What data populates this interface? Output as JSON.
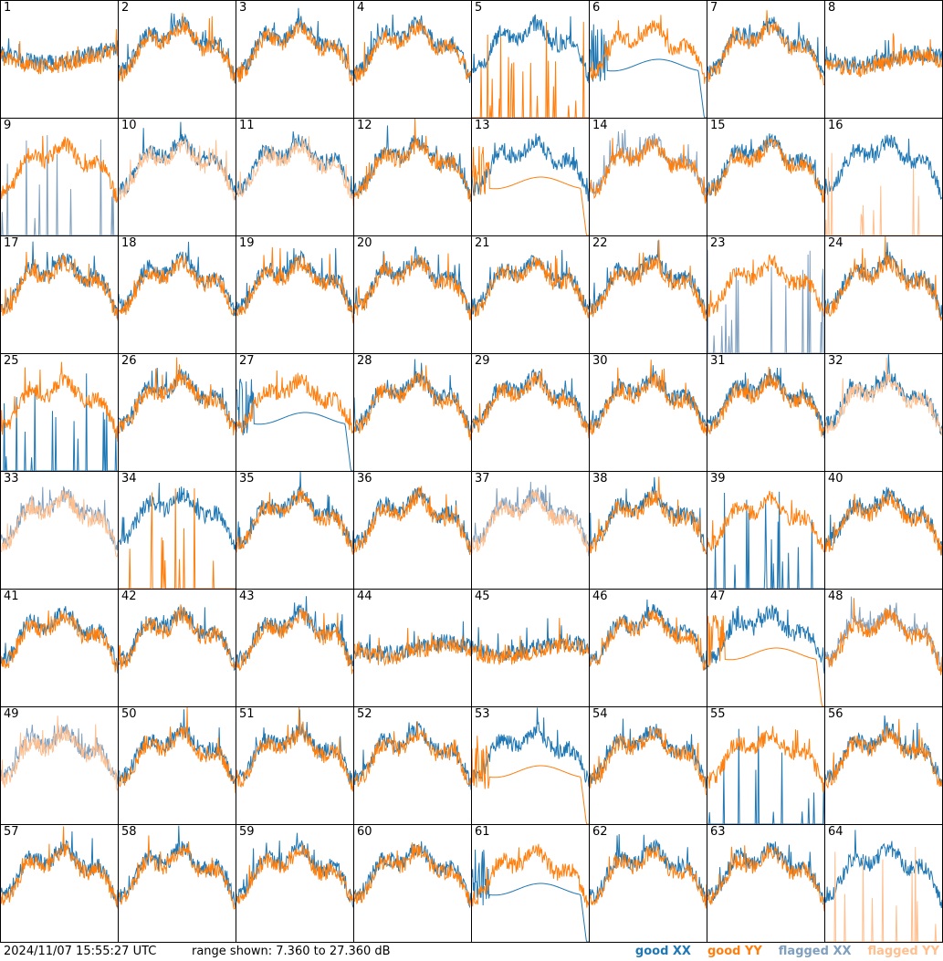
{
  "footer": {
    "timestamp": "2024/11/07 15:55:27 UTC",
    "range_text": "range shown: 7.360 to 27.360 dB"
  },
  "legend": [
    {
      "label": "good XX",
      "color": "#1f77b4"
    },
    {
      "label": "good YY",
      "color": "#ff7f0e"
    },
    {
      "label": "flagged XX",
      "color": "#7f9fbf"
    },
    {
      "label": "flagged YY",
      "color": "#ffbf8f"
    }
  ],
  "chart_data": {
    "type": "line",
    "layout": "8x8 small multiples",
    "ylim": [
      7.36,
      27.36
    ],
    "yunit": "dB",
    "grid": false,
    "legend_position": "bottom-right",
    "colors": {
      "good_xx": "#1f77b4",
      "good_yy": "#ff7f0e",
      "flagged_xx": "#7f9fbf",
      "flagged_yy": "#ffbf8f"
    },
    "panels": [
      {
        "id": "1",
        "xx": "good",
        "yy": "good",
        "shape": "flat-hi"
      },
      {
        "id": "2",
        "xx": "good",
        "yy": "good",
        "shape": "u"
      },
      {
        "id": "3",
        "xx": "good",
        "yy": "good",
        "shape": "u"
      },
      {
        "id": "4",
        "xx": "good",
        "yy": "good",
        "shape": "u"
      },
      {
        "id": "5",
        "xx": "good",
        "yy": "good",
        "shape": "u",
        "yy_shape": "spikes"
      },
      {
        "id": "6",
        "xx": "good",
        "yy": "good",
        "shape": "u",
        "xx_shape": "decay"
      },
      {
        "id": "7",
        "xx": "good",
        "yy": "good",
        "shape": "u"
      },
      {
        "id": "8",
        "xx": "good",
        "yy": "good",
        "shape": "flat"
      },
      {
        "id": "9",
        "xx": "flagged",
        "yy": "good",
        "shape": "u",
        "xx_shape": "spikes"
      },
      {
        "id": "10",
        "xx": "good",
        "yy": "flagged",
        "shape": "u"
      },
      {
        "id": "11",
        "xx": "good",
        "yy": "flagged",
        "shape": "u"
      },
      {
        "id": "12",
        "xx": "good",
        "yy": "good",
        "shape": "u"
      },
      {
        "id": "13",
        "xx": "good",
        "yy": "good",
        "shape": "u",
        "yy_shape": "decay"
      },
      {
        "id": "14",
        "xx": "flagged",
        "yy": "good",
        "shape": "u"
      },
      {
        "id": "15",
        "xx": "good",
        "yy": "good",
        "shape": "u"
      },
      {
        "id": "16",
        "xx": "good",
        "yy": "flagged",
        "shape": "u",
        "yy_shape": "spikes"
      },
      {
        "id": "17",
        "xx": "good",
        "yy": "good",
        "shape": "u"
      },
      {
        "id": "18",
        "xx": "good",
        "yy": "good",
        "shape": "u"
      },
      {
        "id": "19",
        "xx": "good",
        "yy": "good",
        "shape": "u"
      },
      {
        "id": "20",
        "xx": "good",
        "yy": "good",
        "shape": "u"
      },
      {
        "id": "21",
        "xx": "good",
        "yy": "good",
        "shape": "u"
      },
      {
        "id": "22",
        "xx": "good",
        "yy": "good",
        "shape": "u"
      },
      {
        "id": "23",
        "xx": "flagged",
        "yy": "good",
        "shape": "u",
        "xx_shape": "spikes"
      },
      {
        "id": "24",
        "xx": "good",
        "yy": "good",
        "shape": "u"
      },
      {
        "id": "25",
        "xx": "good",
        "yy": "good",
        "shape": "u",
        "xx_shape": "spikes"
      },
      {
        "id": "26",
        "xx": "good",
        "yy": "good",
        "shape": "u"
      },
      {
        "id": "27",
        "xx": "good",
        "yy": "good",
        "shape": "u",
        "xx_shape": "decay"
      },
      {
        "id": "28",
        "xx": "good",
        "yy": "good",
        "shape": "u"
      },
      {
        "id": "29",
        "xx": "good",
        "yy": "good",
        "shape": "u"
      },
      {
        "id": "30",
        "xx": "good",
        "yy": "good",
        "shape": "u"
      },
      {
        "id": "31",
        "xx": "good",
        "yy": "good",
        "shape": "u"
      },
      {
        "id": "32",
        "xx": "good",
        "yy": "flagged",
        "shape": "u"
      },
      {
        "id": "33",
        "xx": "flagged",
        "yy": "flagged",
        "shape": "u"
      },
      {
        "id": "34",
        "xx": "good",
        "yy": "good",
        "shape": "u",
        "yy_shape": "spikes"
      },
      {
        "id": "35",
        "xx": "good",
        "yy": "good",
        "shape": "u"
      },
      {
        "id": "36",
        "xx": "good",
        "yy": "good",
        "shape": "u"
      },
      {
        "id": "37",
        "xx": "flagged",
        "yy": "flagged",
        "shape": "u"
      },
      {
        "id": "38",
        "xx": "good",
        "yy": "good",
        "shape": "u"
      },
      {
        "id": "39",
        "xx": "good",
        "yy": "good",
        "shape": "u",
        "xx_shape": "spikes"
      },
      {
        "id": "40",
        "xx": "good",
        "yy": "good",
        "shape": "u"
      },
      {
        "id": "41",
        "xx": "good",
        "yy": "good",
        "shape": "u"
      },
      {
        "id": "42",
        "xx": "good",
        "yy": "good",
        "shape": "u"
      },
      {
        "id": "43",
        "xx": "good",
        "yy": "good",
        "shape": "u"
      },
      {
        "id": "44",
        "xx": "good",
        "yy": "good",
        "shape": "flat"
      },
      {
        "id": "45",
        "xx": "good",
        "yy": "good",
        "shape": "flat"
      },
      {
        "id": "46",
        "xx": "good",
        "yy": "good",
        "shape": "u"
      },
      {
        "id": "47",
        "xx": "good",
        "yy": "good",
        "shape": "u",
        "yy_shape": "decay"
      },
      {
        "id": "48",
        "xx": "flagged",
        "yy": "good",
        "shape": "u"
      },
      {
        "id": "49",
        "xx": "flagged",
        "yy": "flagged",
        "shape": "u"
      },
      {
        "id": "50",
        "xx": "good",
        "yy": "good",
        "shape": "u"
      },
      {
        "id": "51",
        "xx": "good",
        "yy": "good",
        "shape": "u"
      },
      {
        "id": "52",
        "xx": "good",
        "yy": "good",
        "shape": "u"
      },
      {
        "id": "53",
        "xx": "good",
        "yy": "good",
        "shape": "u",
        "yy_shape": "decay"
      },
      {
        "id": "54",
        "xx": "good",
        "yy": "good",
        "shape": "u"
      },
      {
        "id": "55",
        "xx": "good",
        "yy": "good",
        "shape": "u",
        "xx_shape": "spikes"
      },
      {
        "id": "56",
        "xx": "good",
        "yy": "good",
        "shape": "u"
      },
      {
        "id": "57",
        "xx": "good",
        "yy": "good",
        "shape": "u"
      },
      {
        "id": "58",
        "xx": "good",
        "yy": "good",
        "shape": "u"
      },
      {
        "id": "59",
        "xx": "good",
        "yy": "good",
        "shape": "u"
      },
      {
        "id": "60",
        "xx": "good",
        "yy": "good",
        "shape": "u"
      },
      {
        "id": "61",
        "xx": "good",
        "yy": "good",
        "shape": "u",
        "xx_shape": "decay"
      },
      {
        "id": "62",
        "xx": "good",
        "yy": "good",
        "shape": "u"
      },
      {
        "id": "63",
        "xx": "good",
        "yy": "good",
        "shape": "u"
      },
      {
        "id": "64",
        "xx": "good",
        "yy": "flagged",
        "shape": "u",
        "yy_shape": "spikes"
      }
    ]
  }
}
